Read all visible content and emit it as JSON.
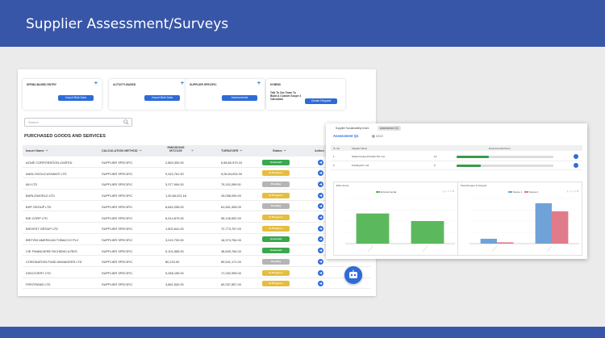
{
  "banner": {
    "title": "Supplier Assessment/Surveys"
  },
  "cards": [
    {
      "title": "SPEND-BASED ENTRY",
      "button": "Import Bulk Data"
    },
    {
      "title": "ACTIVITY-BASED",
      "button": "Import Bulk Data"
    },
    {
      "title": "SUPPLIER SPECIFIC",
      "button": "Assessments"
    },
    {
      "title": "HYBRID",
      "text": "Talk To Our Team To Build A Custom Scope 3 Calculator",
      "button": "Create Request"
    }
  ],
  "search": {
    "placeholder": "Search"
  },
  "section": {
    "title": "PURCHASED GOODS AND SERVICES"
  },
  "table": {
    "headers": {
      "issuer": "Issuer Name",
      "method": "CALCULATION METHOD",
      "emissions": "EMISSIONS MTCO2E",
      "turnover": "TURNOVER",
      "status": "Status",
      "action": "Action"
    },
    "rows": [
      {
        "issuer": "ACME CORPORATION LIMITED",
        "method": "SUPPLIER SPECIFIC",
        "emissions": "2,863,300.00",
        "turnover": "6,58,60,979.24",
        "status": "Assessed"
      },
      {
        "issuer": "ANGLOGOLD ASHANTI LTD",
        "method": "SUPPLIER SPECIFIC",
        "emissions": "9,310,761.00",
        "turnover": "5,06,54,004.00",
        "status": "In Progress"
      },
      {
        "issuer": "AVI LTD",
        "method": "SUPPLIER SPECIFIC",
        "emissions": "3,377,994.00",
        "turnover": "79,115,399.00",
        "status": "Pending"
      },
      {
        "issuer": "BARLOWORLD LTD",
        "method": "SUPPLIER SPECIFIC",
        "emissions": "1,30,66,201.18",
        "turnover": "43,058,090.00",
        "status": "In Progress"
      },
      {
        "issuer": "BHP GROUP LTD",
        "method": "SUPPLIER SPECIFIC",
        "emissions": "8,640,295.00",
        "turnover": "81,551,405.00",
        "status": "Pending"
      },
      {
        "issuer": "BID CORP LTD",
        "method": "SUPPLIER SPECIFIC",
        "emissions": "6,914,879.00",
        "turnover": "55,128,592.00",
        "status": "In Progress"
      },
      {
        "issuer": "BIDVEST GROUP LTD",
        "method": "SUPPLIER SPECIFIC",
        "emissions": "1,502,641.00",
        "turnover": "72,773,767.00",
        "status": "In Progress"
      },
      {
        "issuer": "BRITISH AMERICAN TOBACCO PLC",
        "method": "SUPPLIER SPECIFIC",
        "emissions": "3,010,700.00",
        "turnover": "16,974,764.00",
        "status": "Assessed"
      },
      {
        "issuer": "CIE FINANCIERE RICHEMO-A REG",
        "method": "SUPPLIER SPECIFIC",
        "emissions": "9,101,565.00",
        "turnover": "38,605,764.00",
        "status": "Assessed"
      },
      {
        "issuer": "CORONATION FUND MANAGERS LTD",
        "method": "SUPPLIER SPECIFIC",
        "emissions": "80,224.00",
        "turnover": "89,541,171.00",
        "status": "Pending"
      },
      {
        "issuer": "DISCOVERY LTD",
        "method": "SUPPLIER SPECIFIC",
        "emissions": "9,288,159.00",
        "turnover": "17,252,999.00",
        "status": "In Progress"
      },
      {
        "issuer": "FIRSTRAND LTD",
        "method": "SUPPLIER SPECIFIC",
        "emissions": "3,861,532.00",
        "turnover": "60,257,857.00",
        "status": "In Progress"
      }
    ]
  },
  "overlay": {
    "tabs": [
      "Supplier Sustainability Index",
      "Assessment Q1"
    ],
    "heading": "Assessment Q1",
    "year": "2022",
    "headers": {
      "no": "Sr. No",
      "name": "Supplier Name",
      "score": "Environmental Score"
    },
    "rows": [
      {
        "no": "1",
        "name": "Global Invoice Provider Pvt. Ltd.",
        "score": "12",
        "fill": 0.33
      },
      {
        "no": "2",
        "name": "Funding Pvt. Ltd.",
        "score": "9",
        "fill": 0.25
      }
    ],
    "chart_left_title": "ESG Score",
    "chart_left_legend": "Environmental",
    "chart_right_title": "Total Scope1 & Scope2",
    "chart_right_legend": [
      "Scope 1",
      "Scope 2"
    ]
  },
  "chart_data": [
    {
      "type": "bar",
      "title": "ESG Score",
      "series": [
        {
          "name": "Environmental",
          "values": [
            12,
            9
          ],
          "color": "#5cb85c"
        }
      ],
      "ylim": [
        0,
        18
      ]
    },
    {
      "type": "bar",
      "title": "Total Scope1 & Scope2",
      "series": [
        {
          "name": "Scope 1",
          "values": [
            150,
            1250
          ],
          "color": "#6fa3d8"
        },
        {
          "name": "Scope 2",
          "values": [
            40,
            1000
          ],
          "color": "#e07b8a"
        }
      ],
      "ylim": [
        0,
        1400
      ]
    }
  ],
  "colors": {
    "brand": "#3856a8",
    "accent": "#2f6bd8",
    "assessed": "#3aa84f",
    "in_progress": "#e6bd3e",
    "pending": "#b5b5b5"
  }
}
